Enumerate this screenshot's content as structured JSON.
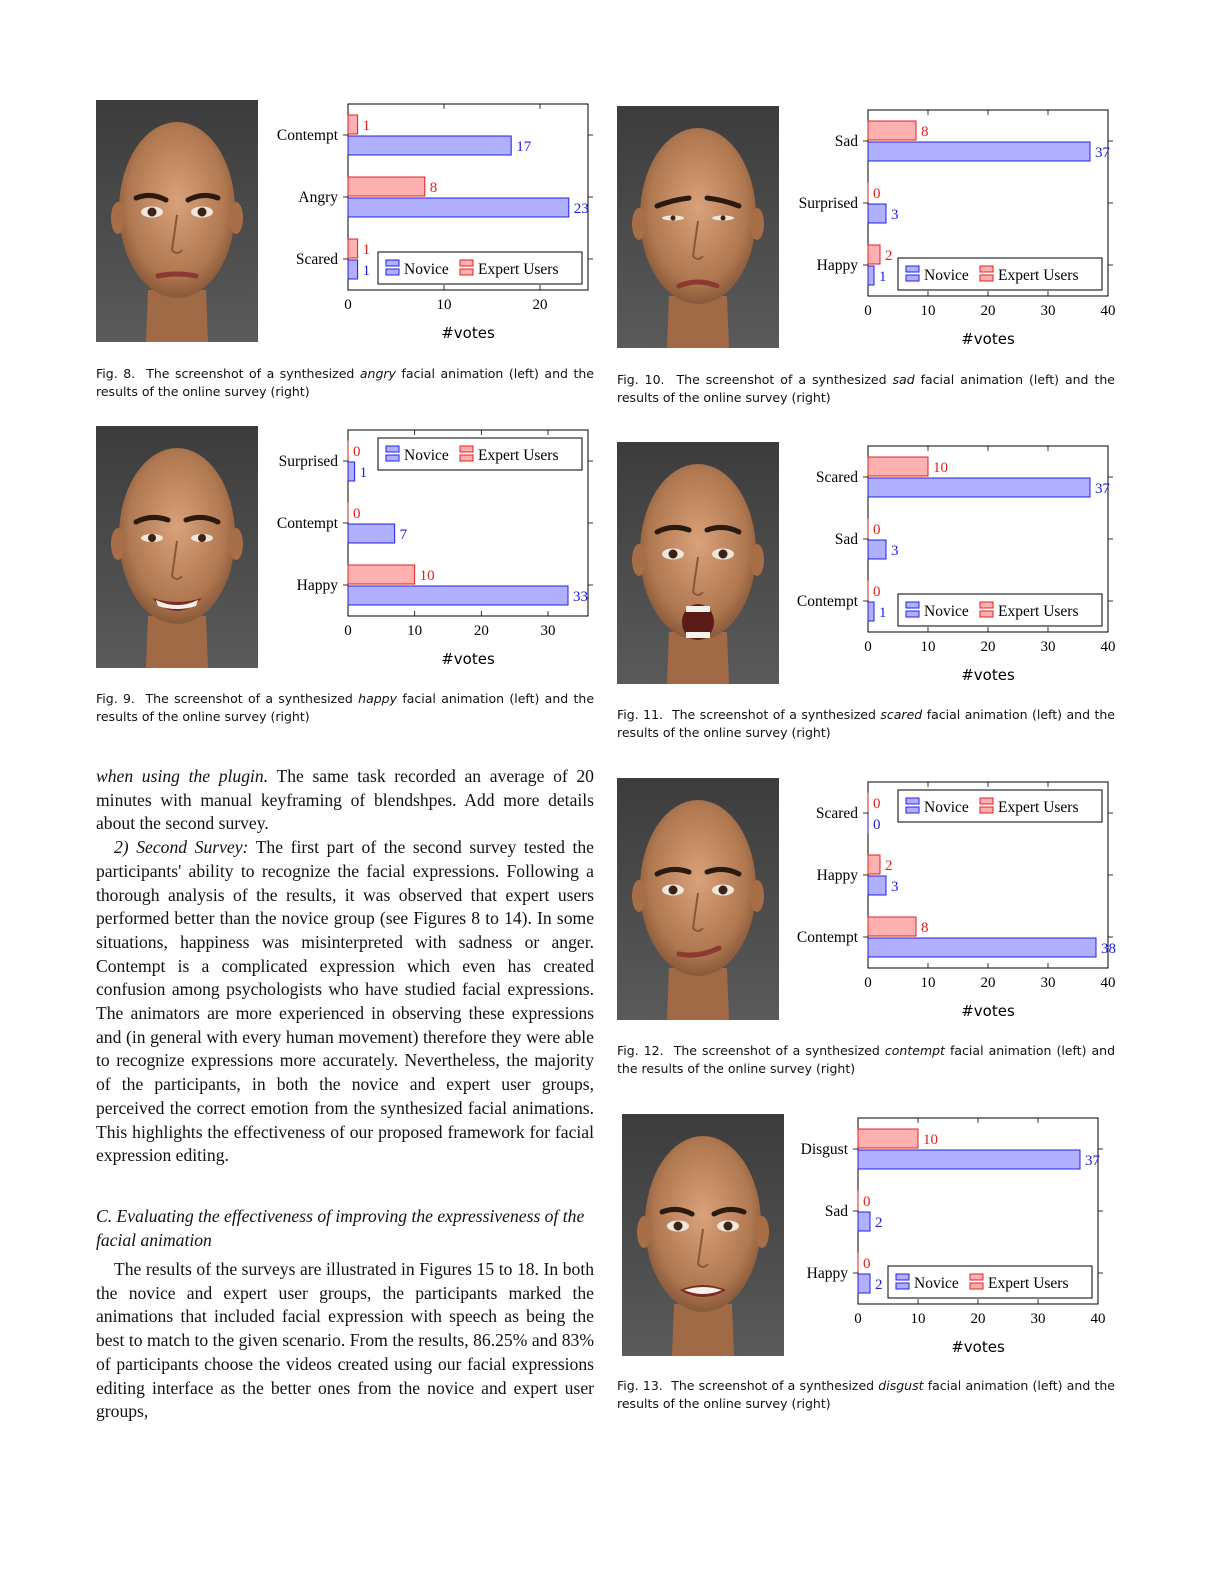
{
  "figures": [
    {
      "id": "fig8",
      "caption_label": "Fig. 8.",
      "caption_pre": "The screenshot of a synthesized",
      "caption_emotion": "angry",
      "caption_post": "facial animation (left) and the results of the online survey (right)",
      "face_expression": "angry",
      "chart_data": {
        "type": "bar",
        "orientation": "horizontal",
        "categories": [
          "Contempt",
          "Angry",
          "Scared"
        ],
        "series": [
          {
            "name": "Expert Users",
            "color": "#ff8080",
            "values": [
              1,
              8,
              1
            ]
          },
          {
            "name": "Novice",
            "color": "#8080ff",
            "values": [
              17,
              23,
              1
            ]
          }
        ],
        "xlim": [
          0,
          25
        ],
        "xticks": [
          0,
          10,
          20
        ],
        "xlabel": "#votes",
        "legend": "bottom-right"
      }
    },
    {
      "id": "fig9",
      "caption_label": "Fig. 9.",
      "caption_pre": "The screenshot of a synthesized",
      "caption_emotion": "happy",
      "caption_post": "facial animation (left) and the results of the online survey (right)",
      "face_expression": "happy",
      "chart_data": {
        "type": "bar",
        "orientation": "horizontal",
        "categories": [
          "Surprised",
          "Contempt",
          "Happy"
        ],
        "series": [
          {
            "name": "Expert Users",
            "color": "#ff8080",
            "values": [
              0,
              0,
              10
            ]
          },
          {
            "name": "Novice",
            "color": "#8080ff",
            "values": [
              1,
              7,
              33
            ]
          }
        ],
        "xlim": [
          0,
          36
        ],
        "xticks": [
          0,
          10,
          20,
          30
        ],
        "xlabel": "#votes",
        "legend": "top-right"
      }
    },
    {
      "id": "fig10",
      "caption_label": "Fig. 10.",
      "caption_pre": "The screenshot of a synthesized",
      "caption_emotion": "sad",
      "caption_post": "facial animation (left) and the results of the online survey (right)",
      "face_expression": "sad",
      "chart_data": {
        "type": "bar",
        "orientation": "horizontal",
        "categories": [
          "Sad",
          "Surprised",
          "Happy"
        ],
        "series": [
          {
            "name": "Expert Users",
            "color": "#ff8080",
            "values": [
              8,
              0,
              2
            ]
          },
          {
            "name": "Novice",
            "color": "#8080ff",
            "values": [
              37,
              3,
              1
            ]
          }
        ],
        "xlim": [
          0,
          40
        ],
        "xticks": [
          0,
          10,
          20,
          30,
          40
        ],
        "xlabel": "#votes",
        "legend": "bottom-right"
      }
    },
    {
      "id": "fig11",
      "caption_label": "Fig. 11.",
      "caption_pre": "The screenshot of a synthesized",
      "caption_emotion": "scared",
      "caption_post": "facial animation (left) and the results of the online survey (right)",
      "face_expression": "scared",
      "chart_data": {
        "type": "bar",
        "orientation": "horizontal",
        "categories": [
          "Scared",
          "Sad",
          "Contempt"
        ],
        "series": [
          {
            "name": "Expert Users",
            "color": "#ff8080",
            "values": [
              10,
              0,
              0
            ]
          },
          {
            "name": "Novice",
            "color": "#8080ff",
            "values": [
              37,
              3,
              1
            ]
          }
        ],
        "xlim": [
          0,
          40
        ],
        "xticks": [
          0,
          10,
          20,
          30,
          40
        ],
        "xlabel": "#votes",
        "legend": "bottom-right"
      }
    },
    {
      "id": "fig12",
      "caption_label": "Fig. 12.",
      "caption_pre": "The screenshot of a synthesized",
      "caption_emotion": "contempt",
      "caption_post": "facial animation (left) and the results of the online survey (right)",
      "face_expression": "contempt",
      "chart_data": {
        "type": "bar",
        "orientation": "horizontal",
        "categories": [
          "Scared",
          "Happy",
          "Contempt"
        ],
        "series": [
          {
            "name": "Expert Users",
            "color": "#ff8080",
            "values": [
              0,
              2,
              8
            ]
          },
          {
            "name": "Novice",
            "color": "#8080ff",
            "values": [
              0,
              3,
              38
            ]
          }
        ],
        "xlim": [
          0,
          40
        ],
        "xticks": [
          0,
          10,
          20,
          30,
          40
        ],
        "xlabel": "#votes",
        "legend": "top-right"
      }
    },
    {
      "id": "fig13",
      "caption_label": "Fig. 13.",
      "caption_pre": "The screenshot of a synthesized",
      "caption_emotion": "disgust",
      "caption_post": "facial animation (left) and the results of the online survey (right)",
      "face_expression": "disgust",
      "chart_data": {
        "type": "bar",
        "orientation": "horizontal",
        "categories": [
          "Disgust",
          "Sad",
          "Happy"
        ],
        "series": [
          {
            "name": "Expert Users",
            "color": "#ff8080",
            "values": [
              10,
              0,
              0
            ]
          },
          {
            "name": "Novice",
            "color": "#8080ff",
            "values": [
              37,
              2,
              2
            ]
          }
        ],
        "xlim": [
          0,
          40
        ],
        "xticks": [
          0,
          10,
          20,
          30,
          40
        ],
        "xlabel": "#votes",
        "legend": "bottom-right"
      }
    }
  ],
  "body": {
    "para1_italic": "when using the plugin.",
    "para1_rest": "The same task recorded an average of 20 minutes with manual keyframing of blendshpes. Add more details about the second survey.",
    "para2_head": "2) Second Survey:",
    "para2_rest": "The first part of the second survey tested the participants' ability to recognize the facial expressions. Following a thorough analysis of the results, it was observed that expert users performed better than the novice group (see Figures 8 to 14). In some situations, happiness was misinterpreted with sadness or anger. Contempt is a complicated expression which even has created confusion among psychologists who have studied facial expressions. The animators are more experienced in observing these expressions and (in general with every human movement) therefore they were able to recognize expressions more accurately. Nevertheless, the majority of the participants, in both the novice and expert user groups, perceived the correct emotion from the synthesized facial animations. This highlights the effectiveness of our proposed framework for facial expression editing.",
    "section_head": "C. Evaluating the effectiveness of improving the expressiveness of the facial animation",
    "para3": "The results of the surveys are illustrated in Figures 15 to 18. In both the novice and expert user groups, the participants marked the animations that included facial expression with speech as being the best to match to the given scenario. From the results, 86.25% and 83% of participants choose the videos created using our facial expressions editing interface as the better ones from the novice and expert user groups,"
  }
}
